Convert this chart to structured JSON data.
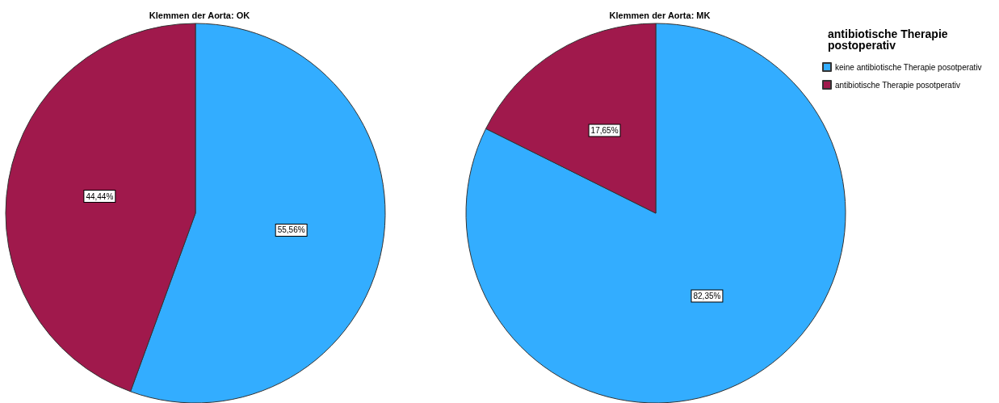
{
  "chart_data": [
    {
      "type": "pie",
      "title": "Klemmen der Aorta: OK",
      "categories": [
        null,
        null
      ],
      "values": [
        55.56,
        44.44
      ],
      "colors": [
        "#33adff",
        "#a0194c"
      ],
      "value_labels": [
        "55,56%",
        "44,44%"
      ],
      "legend": false
    },
    {
      "type": "pie",
      "title": "Klemmen der Aorta: MK",
      "categories": [
        "keine antibiotische Therapie posotperativ",
        "antibiotische Therapie posotperativ"
      ],
      "values": [
        82.35,
        17.65
      ],
      "colors": [
        "#33adff",
        "#a0194c"
      ],
      "value_labels": [
        "82,35%",
        "17,65%"
      ],
      "legend": "right",
      "legend_title": "antibiotische Therapie postoperativ"
    }
  ]
}
